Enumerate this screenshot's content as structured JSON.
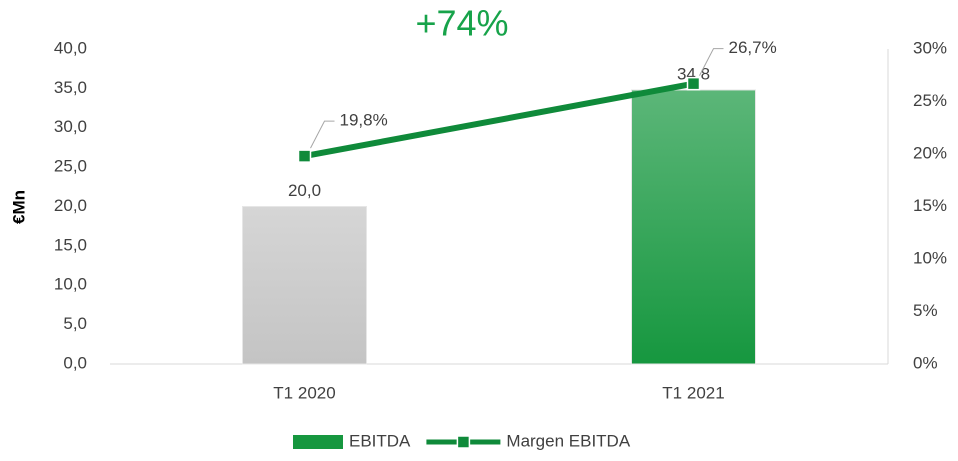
{
  "chart_data": {
    "type": "bar",
    "annotation": "+74%",
    "ylabel": "€Mn",
    "categories": [
      "T1 2020",
      "T1 2021"
    ],
    "series": [
      {
        "name": "EBITDA",
        "type": "bar",
        "color": "#16973f",
        "point_colors": [
          "#c4c4c4",
          "#16973f"
        ],
        "values": [
          20.0,
          34.8
        ],
        "value_labels": [
          "20,0",
          "34,8"
        ]
      },
      {
        "name": "Margen EBITDA",
        "type": "line",
        "axis": "y2",
        "color": "#0f8a3a",
        "values": [
          19.8,
          26.7
        ],
        "value_labels": [
          "19,8%",
          "26,7%"
        ]
      }
    ],
    "ylim": [
      0,
      40
    ],
    "yticks": [
      {
        "value": 0,
        "label": "0,0"
      },
      {
        "value": 5,
        "label": "5,0"
      },
      {
        "value": 10,
        "label": "10,0"
      },
      {
        "value": 15,
        "label": "15,0"
      },
      {
        "value": 20,
        "label": "20,0"
      },
      {
        "value": 25,
        "label": "25,0"
      },
      {
        "value": 30,
        "label": "30,0"
      },
      {
        "value": 35,
        "label": "35,0"
      },
      {
        "value": 40,
        "label": "40,0"
      }
    ],
    "y2lim": [
      0,
      30
    ],
    "y2ticks": [
      {
        "value": 0,
        "label": "0%"
      },
      {
        "value": 5,
        "label": "5%"
      },
      {
        "value": 10,
        "label": "10%"
      },
      {
        "value": 15,
        "label": "15%"
      },
      {
        "value": 20,
        "label": "20%"
      },
      {
        "value": 25,
        "label": "25%"
      },
      {
        "value": 30,
        "label": "30%"
      }
    ],
    "grid": false,
    "legend": "bottom"
  }
}
